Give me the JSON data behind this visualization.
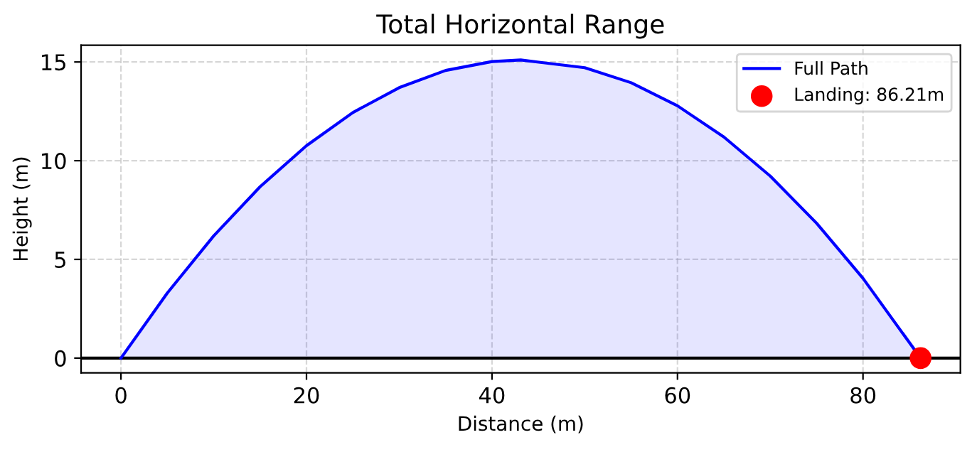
{
  "chart_data": {
    "type": "area",
    "title": "Total Horizontal Range",
    "xlabel": "Distance (m)",
    "ylabel": "Height (m)",
    "xlim": [
      -4.3,
      90.5
    ],
    "ylim": [
      -0.75,
      15.85
    ],
    "xticks": [
      0,
      20,
      40,
      60,
      80
    ],
    "yticks": [
      0,
      5,
      10,
      15
    ],
    "grid": true,
    "legend": "top right",
    "ref_lines": [
      {
        "axis": "y",
        "value": 0,
        "color": "#000000"
      }
    ],
    "series": [
      {
        "name": "Full Path",
        "color": "#0000ff",
        "x": [
          0,
          5,
          10,
          15,
          20,
          25,
          30,
          35,
          40,
          43.1,
          50,
          55,
          60,
          65,
          70,
          75,
          80,
          86.21
        ],
        "values": [
          0,
          3.3,
          6.19,
          8.68,
          10.76,
          12.44,
          13.7,
          14.57,
          15.02,
          15.1,
          14.71,
          13.95,
          12.78,
          11.2,
          9.22,
          6.83,
          4.04,
          0
        ]
      },
      {
        "name": "Landing: 86.21m",
        "type": "scatter",
        "color": "#ff0000",
        "x": [
          86.21
        ],
        "values": [
          0
        ]
      }
    ]
  }
}
